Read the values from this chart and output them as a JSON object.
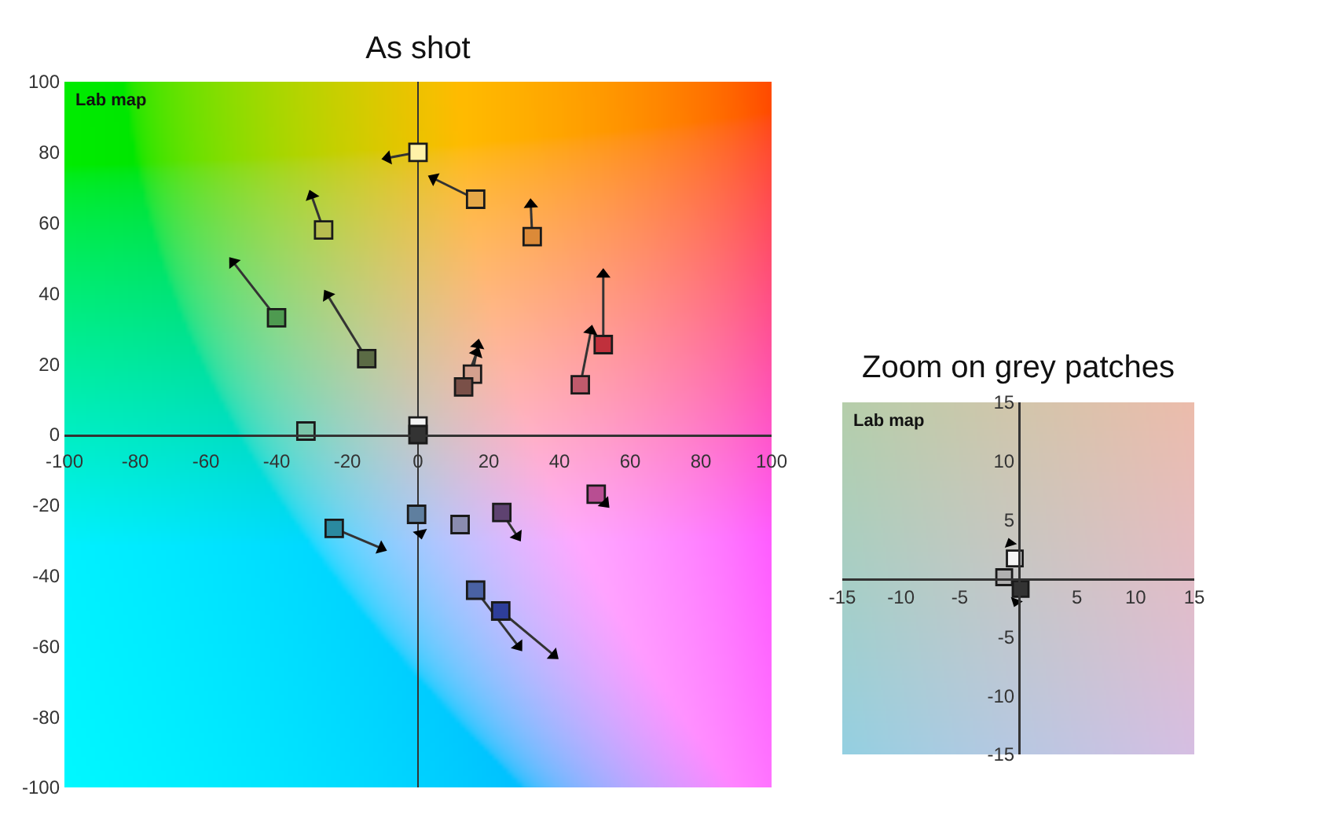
{
  "chart_data": [
    {
      "type": "scatter",
      "title": "As shot",
      "annotations": [
        "Lab map"
      ],
      "xlim": [
        -100,
        100
      ],
      "ylim": [
        -100,
        100
      ],
      "xticks": [
        -100,
        -80,
        -60,
        -40,
        -20,
        0,
        20,
        40,
        60,
        80,
        100
      ],
      "yticks": [
        -100,
        -80,
        -60,
        -40,
        -20,
        0,
        20,
        40,
        60,
        80,
        100
      ],
      "line_style": "solid",
      "series": [
        {
          "marker": "square",
          "colors": [
            "#b7bd50",
            "#4e9a50",
            "#5b6b45",
            "#7ac4a8",
            "#fff2a8",
            "#e6a848",
            "#dc8a38",
            "#c0303c",
            "#c05a6c",
            "#d4a08e",
            "#7a5048",
            "#f4f4f4",
            "#333333",
            "#2a8aa0",
            "#5f7f9f",
            "#8a8cb0",
            "#5e4270",
            "#b84e92",
            "#4a62a4",
            "#2e3e9a"
          ],
          "x": [
            -26.7,
            -40,
            -14.5,
            -31.7,
            0,
            16.3,
            32.3,
            52.4,
            45.9,
            15.4,
            12.9,
            0,
            0,
            -23.7,
            -0.4,
            11.9,
            23.7,
            50.4,
            16.3,
            23.4
          ],
          "values": [
            58,
            33.1,
            21.5,
            1,
            80,
            66.7,
            56.1,
            25.5,
            14.1,
            17.1,
            13.5,
            2.4,
            0,
            -26.6,
            -22.6,
            -25.5,
            -22.1,
            -16.9,
            -44.1,
            -50
          ]
        },
        {
          "marker": "triangle",
          "color": "#000000",
          "x": [
            -30.1,
            -52.3,
            -25.6,
            null,
            -8.6,
            4.4,
            31.9,
            52.4,
            48.9,
            16.9,
            16.6,
            null,
            null,
            -10.4,
            0.7,
            null,
            28.1,
            52.9,
            28.4,
            38.4
          ],
          "values": [
            67.7,
            48.9,
            39.5,
            null,
            78.4,
            72.6,
            65.2,
            45.4,
            29.4,
            25.4,
            23.2,
            null,
            null,
            -32.2,
            -28,
            null,
            -28.8,
            -19.5,
            -60,
            -62.5
          ]
        },
        {
          "type": "line",
          "color": "#333333",
          "x": [
            -26.7,
            -30.1
          ],
          "values": [
            58,
            67.7
          ]
        },
        {
          "type": "line",
          "color": "#333333",
          "x": [
            -40,
            -52.3
          ],
          "values": [
            33.1,
            48.9
          ]
        },
        {
          "type": "line",
          "color": "#333333",
          "x": [
            -14.5,
            -25.6
          ],
          "values": [
            21.5,
            39.5
          ]
        },
        {
          "type": "line",
          "color": "#333333",
          "x": [
            0,
            -8.6
          ],
          "values": [
            80,
            78.4
          ]
        },
        {
          "type": "line",
          "color": "#333333",
          "x": [
            16.3,
            4.4
          ],
          "values": [
            66.7,
            72.6
          ]
        },
        {
          "type": "line",
          "color": "#333333",
          "x": [
            32.3,
            31.9
          ],
          "values": [
            56.1,
            65.2
          ]
        },
        {
          "type": "line",
          "color": "#333333",
          "x": [
            52.4,
            52.4
          ],
          "values": [
            25.5,
            45.4
          ]
        },
        {
          "type": "line",
          "color": "#333333",
          "x": [
            45.9,
            48.9
          ],
          "values": [
            14.1,
            29.4
          ]
        },
        {
          "type": "line",
          "color": "#333333",
          "x": [
            15.4,
            16.9
          ],
          "values": [
            17.1,
            25.4
          ]
        },
        {
          "type": "line",
          "color": "#333333",
          "x": [
            12.9,
            16.6
          ],
          "values": [
            13.5,
            23.2
          ]
        },
        {
          "type": "line",
          "color": "#333333",
          "x": [
            -23.7,
            -10.4
          ],
          "values": [
            -26.6,
            -32.2
          ]
        },
        {
          "type": "line",
          "color": "#333333",
          "x": [
            23.7,
            28.1
          ],
          "values": [
            -22.1,
            -28.8
          ]
        },
        {
          "type": "line",
          "color": "#333333",
          "x": [
            16.3,
            28.4
          ],
          "values": [
            -44.1,
            -60
          ]
        },
        {
          "type": "line",
          "color": "#333333",
          "x": [
            23.4,
            38.4
          ],
          "values": [
            -50,
            -62.5
          ]
        }
      ]
    },
    {
      "type": "scatter",
      "title": "Zoom on grey patches",
      "annotations": [
        "Lab map"
      ],
      "xlim": [
        -15,
        15
      ],
      "ylim": [
        -15,
        15
      ],
      "xticks": [
        -15,
        -10,
        -5,
        5,
        10,
        15
      ],
      "yticks": [
        -15,
        -10,
        -5,
        5,
        10,
        15
      ],
      "series": [
        {
          "marker": "square",
          "colors": [
            "#b0b0b0",
            "#f4f4f4",
            "#333333"
          ],
          "x": [
            -1.2,
            -0.3,
            0.2
          ],
          "values": [
            0.1,
            1.7,
            -0.9
          ]
        },
        {
          "marker": "triangle",
          "color": "#000000",
          "x": [
            null,
            -0.7,
            -0.2
          ],
          "values": [
            null,
            3.0,
            -2.0
          ]
        }
      ]
    }
  ]
}
